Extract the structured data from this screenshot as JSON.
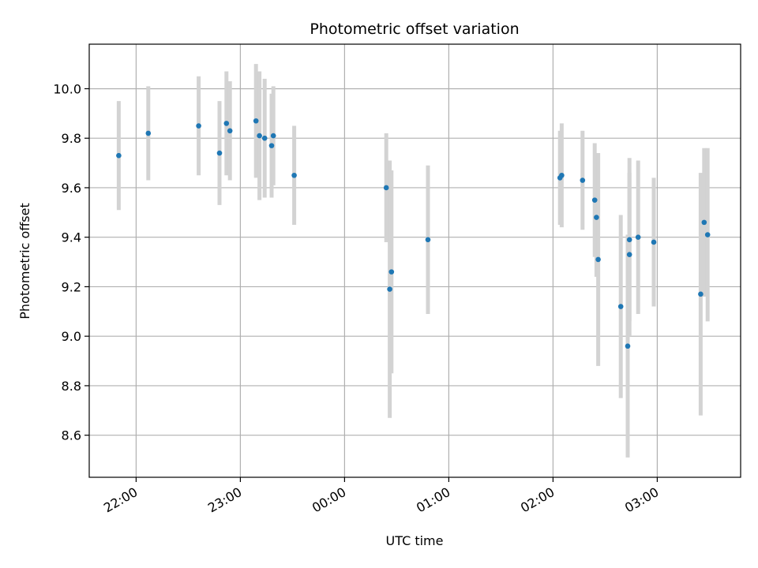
{
  "chart_data": {
    "type": "scatter",
    "title": "Photometric offset variation",
    "xlabel": "UTC time",
    "ylabel": "Photometric offset",
    "grid": true,
    "x_tick_labels": [
      "22:00",
      "23:00",
      "00:00",
      "01:00",
      "02:00",
      "03:00"
    ],
    "x_tick_times": [
      "22:00",
      "23:00",
      "00:00",
      "01:00",
      "02:00",
      "03:00"
    ],
    "xlim": [
      "21:33",
      "03:48"
    ],
    "ylim": [
      8.43,
      10.18
    ],
    "y_ticks": [
      8.6,
      8.8,
      9.0,
      9.2,
      9.4,
      9.6,
      9.8,
      10.0
    ],
    "y_tick_labels": [
      "8.6",
      "8.8",
      "9.0",
      "9.2",
      "9.4",
      "9.6",
      "9.8",
      "10.0"
    ],
    "marker_color": "#1f77b4",
    "errorbar_color": "#d3d3d3",
    "points": [
      {
        "time": "21:50",
        "y": 9.73,
        "err": 0.22
      },
      {
        "time": "22:07",
        "y": 9.82,
        "err": 0.19
      },
      {
        "time": "22:36",
        "y": 9.85,
        "err": 0.2
      },
      {
        "time": "22:48",
        "y": 9.74,
        "err": 0.21
      },
      {
        "time": "22:52",
        "y": 9.86,
        "err": 0.21
      },
      {
        "time": "22:54",
        "y": 9.83,
        "err": 0.2
      },
      {
        "time": "23:09",
        "y": 9.87,
        "err": 0.23
      },
      {
        "time": "23:11",
        "y": 9.81,
        "err": 0.26
      },
      {
        "time": "23:14",
        "y": 9.8,
        "err": 0.24
      },
      {
        "time": "23:18",
        "y": 9.77,
        "err": 0.21
      },
      {
        "time": "23:19",
        "y": 9.81,
        "err": 0.2
      },
      {
        "time": "23:31",
        "y": 9.65,
        "err": 0.2
      },
      {
        "time": "00:24",
        "y": 9.6,
        "err": 0.22
      },
      {
        "time": "00:26",
        "y": 9.19,
        "err": 0.52
      },
      {
        "time": "00:27",
        "y": 9.26,
        "err": 0.41
      },
      {
        "time": "00:48",
        "y": 9.39,
        "err": 0.3
      },
      {
        "time": "02:04",
        "y": 9.64,
        "err": 0.19
      },
      {
        "time": "02:05",
        "y": 9.65,
        "err": 0.21
      },
      {
        "time": "02:17",
        "y": 9.63,
        "err": 0.2
      },
      {
        "time": "02:24",
        "y": 9.55,
        "err": 0.23
      },
      {
        "time": "02:25",
        "y": 9.48,
        "err": 0.24
      },
      {
        "time": "02:26",
        "y": 9.31,
        "err": 0.43
      },
      {
        "time": "02:39",
        "y": 9.12,
        "err": 0.37
      },
      {
        "time": "02:43",
        "y": 8.96,
        "err": 0.45
      },
      {
        "time": "02:44",
        "y": 9.33,
        "err": 0.33
      },
      {
        "time": "02:44",
        "y": 9.39,
        "err": 0.33
      },
      {
        "time": "02:49",
        "y": 9.4,
        "err": 0.31
      },
      {
        "time": "02:58",
        "y": 9.38,
        "err": 0.26
      },
      {
        "time": "03:25",
        "y": 9.17,
        "err": 0.49
      },
      {
        "time": "03:27",
        "y": 9.46,
        "err": 0.3
      },
      {
        "time": "03:29",
        "y": 9.41,
        "err": 0.35
      }
    ]
  }
}
